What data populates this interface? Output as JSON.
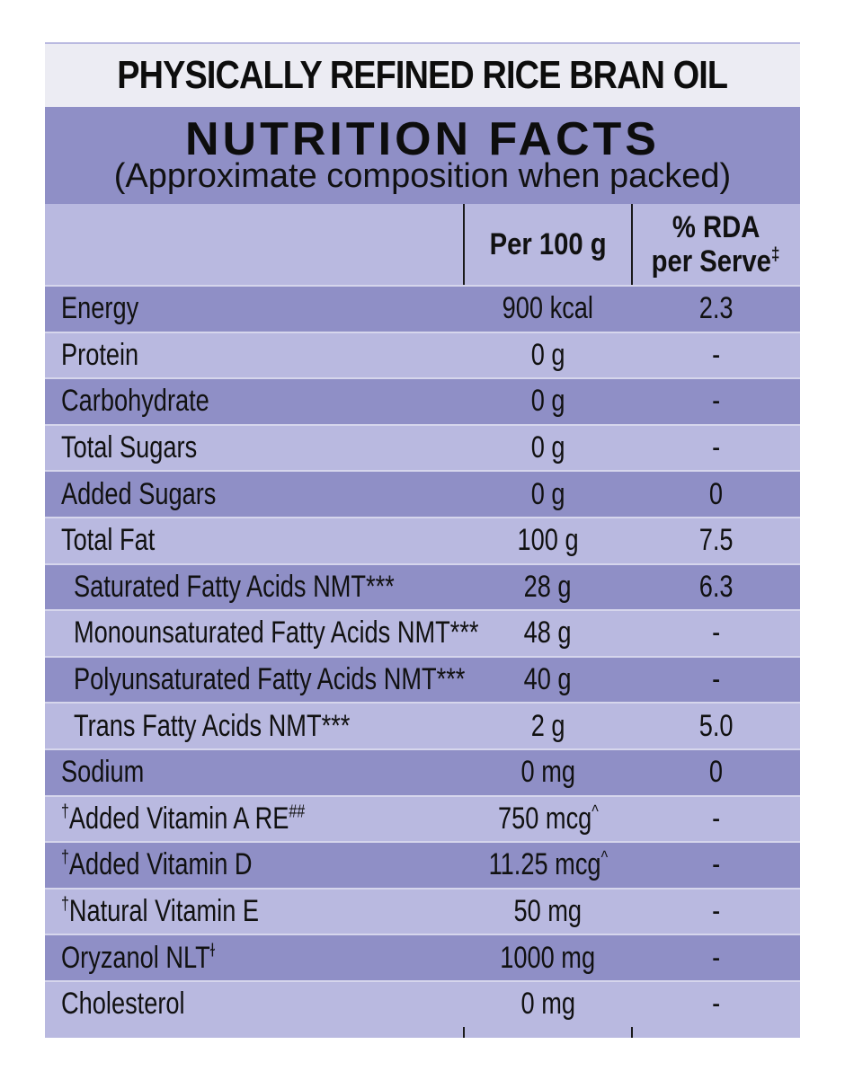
{
  "product_title": "PHYSICALLY REFINED RICE BRAN OIL",
  "panel": {
    "title": "NUTRITION FACTS",
    "subtitle": "(Approximate composition when packed)"
  },
  "columns": {
    "per100": "Per 100 g",
    "rda_line1": "% RDA",
    "rda_line2": "per Serve",
    "rda_mark": "‡"
  },
  "colors": {
    "dark_band": "#8f8fc6",
    "light_band": "#b9b9e0",
    "title_band": "#ececf3"
  },
  "rows": [
    {
      "prefix": "",
      "name": "Energy",
      "suffix": "",
      "per100": "900 kcal",
      "per100_mark": "",
      "rda": "2.3",
      "indent": false
    },
    {
      "prefix": "",
      "name": "Protein",
      "suffix": "",
      "per100": "0 g",
      "per100_mark": "",
      "rda": "-",
      "indent": false
    },
    {
      "prefix": "",
      "name": "Carbohydrate",
      "suffix": "",
      "per100": "0 g",
      "per100_mark": "",
      "rda": "-",
      "indent": false
    },
    {
      "prefix": "",
      "name": "Total Sugars",
      "suffix": "",
      "per100": "0 g",
      "per100_mark": "",
      "rda": "-",
      "indent": false
    },
    {
      "prefix": "",
      "name": "Added Sugars",
      "suffix": "",
      "per100": "0 g",
      "per100_mark": "",
      "rda": "0",
      "indent": false
    },
    {
      "prefix": "",
      "name": "Total Fat",
      "suffix": "",
      "per100": "100 g",
      "per100_mark": "",
      "rda": "7.5",
      "indent": false
    },
    {
      "prefix": "",
      "name": "Saturated Fatty Acids NMT***",
      "suffix": "",
      "per100": "28 g",
      "per100_mark": "",
      "rda": "6.3",
      "indent": true
    },
    {
      "prefix": "",
      "name": "Monounsaturated Fatty Acids NMT***",
      "suffix": "",
      "per100": "48 g",
      "per100_mark": "",
      "rda": "-",
      "indent": true
    },
    {
      "prefix": "",
      "name": "Polyunsaturated Fatty Acids NMT***",
      "suffix": "",
      "per100": "40 g",
      "per100_mark": "",
      "rda": "-",
      "indent": true
    },
    {
      "prefix": "",
      "name": "Trans Fatty Acids NMT***",
      "suffix": "",
      "per100": "2 g",
      "per100_mark": "",
      "rda": "5.0",
      "indent": true
    },
    {
      "prefix": "",
      "name": "Sodium",
      "suffix": "",
      "per100": "0 mg",
      "per100_mark": "",
      "rda": "0",
      "indent": false
    },
    {
      "prefix": "†",
      "name": "Added Vitamin A RE",
      "suffix": "##",
      "per100": "750 mcg",
      "per100_mark": "^",
      "rda": "-",
      "indent": false
    },
    {
      "prefix": "†",
      "name": "Added Vitamin D",
      "suffix": "",
      "per100": "11.25 mcg",
      "per100_mark": "^",
      "rda": "-",
      "indent": false
    },
    {
      "prefix": "†",
      "name": "Natural Vitamin E",
      "suffix": "",
      "per100": "50 mg",
      "per100_mark": "",
      "rda": "-",
      "indent": false
    },
    {
      "prefix": "",
      "name": "Oryzanol NLT",
      "suffix": "ɫ",
      "per100": "1000 mg",
      "per100_mark": "",
      "rda": "-",
      "indent": false
    },
    {
      "prefix": "",
      "name": "Cholesterol",
      "suffix": "",
      "per100": "0 mg",
      "per100_mark": "",
      "rda": "-",
      "indent": false
    }
  ]
}
